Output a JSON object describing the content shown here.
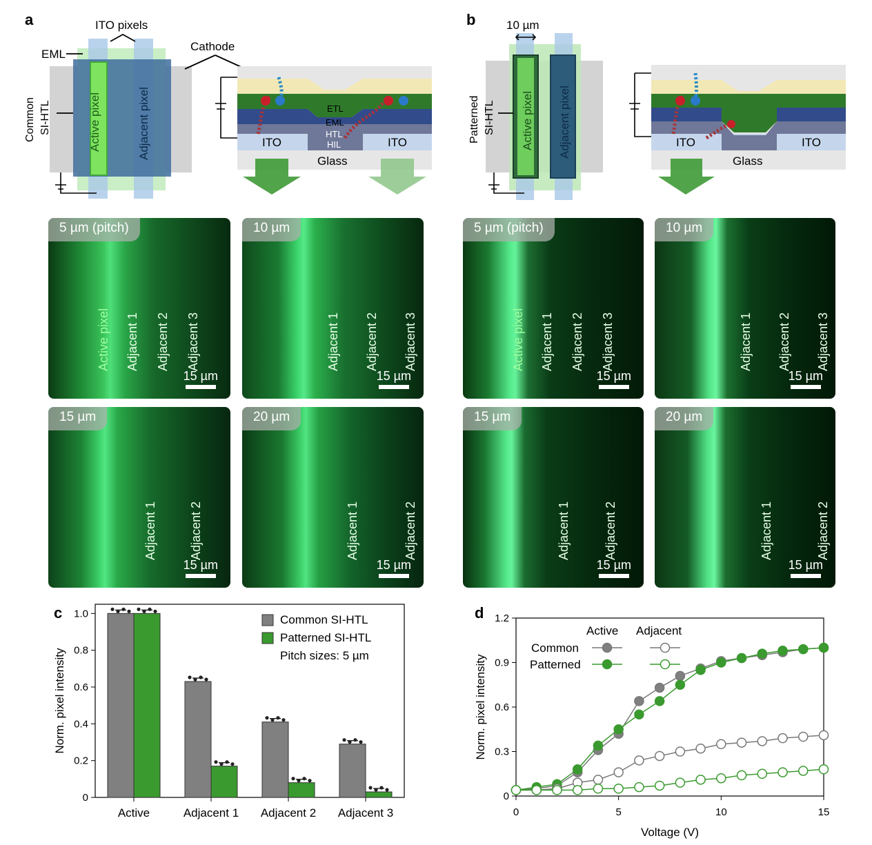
{
  "panel_a": {
    "letter": "a",
    "labels": {
      "ito_pixels": "ITO pixels",
      "eml": "EML",
      "cathode": "Cathode",
      "side": "Common\nSI-HTL",
      "active": "Active pixel",
      "adjacent": "Adjacent pixel",
      "etl": "ETL",
      "eml2": "EML",
      "htl": "HTL",
      "hil": "HIL",
      "ito_left": "ITO",
      "ito_right": "ITO",
      "glass": "Glass"
    },
    "micrographs": [
      {
        "tag": "5 µm (pitch)",
        "labels": [
          "Active pixel",
          "Adjacent 1",
          "Adjacent 2",
          "Adjacent 3"
        ],
        "scalebar": "15 µm"
      },
      {
        "tag": "10 µm",
        "labels": [
          "Adjacent 1",
          "Adjacent 2",
          "Adjacent 3"
        ],
        "scalebar": "15 µm"
      },
      {
        "tag": "15 µm",
        "labels": [
          "Adjacent 1",
          "Adjacent 2"
        ],
        "scalebar": "15 µm"
      },
      {
        "tag": "20 µm",
        "labels": [
          "Adjacent 1",
          "Adjacent 2"
        ],
        "scalebar": "15 µm"
      }
    ]
  },
  "panel_b": {
    "letter": "b",
    "labels": {
      "width": "10 µm",
      "side": "Patterned\nSI-HTL",
      "active": "Active pixel",
      "adjacent": "Adjacent pixel",
      "ito_left": "ITO",
      "ito_right": "ITO",
      "glass": "Glass"
    },
    "micrographs": [
      {
        "tag": "5 µm (pitch)",
        "labels": [
          "Active pixel",
          "Adjacent 1",
          "Adjacent 2",
          "Adjacent 3"
        ],
        "scalebar": "15 µm"
      },
      {
        "tag": "10 µm",
        "labels": [
          "Adjacent 1",
          "Adjacent 2",
          "Adjacent 3"
        ],
        "scalebar": "15 µm"
      },
      {
        "tag": "15 µm",
        "labels": [
          "Adjacent 1",
          "Adjacent 2"
        ],
        "scalebar": "15 µm"
      },
      {
        "tag": "20 µm",
        "labels": [
          "Adjacent 1",
          "Adjacent 2"
        ],
        "scalebar": "15 µm"
      }
    ]
  },
  "colors": {
    "common": "#808080",
    "patterned": "#3a9a2f",
    "patterned_hollow": "#3a9a2f",
    "common_hollow": "#777777"
  },
  "chart_data": [
    {
      "letter": "c",
      "type": "bar",
      "ylabel": "Norm. pixel intensity",
      "ylim": [
        0,
        1.05
      ],
      "yticks": [
        "0",
        "0.2",
        "0.4",
        "0.6",
        "0.8",
        "1.0"
      ],
      "categories": [
        "Active",
        "Adjacent 1",
        "Adjacent 2",
        "Adjacent 3"
      ],
      "series": [
        {
          "name": "Common SI-HTL",
          "values": [
            1.0,
            0.63,
            0.41,
            0.29
          ]
        },
        {
          "name": "Patterned SI-HTL",
          "values": [
            1.0,
            0.17,
            0.08,
            0.03
          ]
        }
      ],
      "note": "Pitch sizes: 5 µm"
    },
    {
      "letter": "d",
      "type": "line",
      "xlabel": "Voltage (V)",
      "ylabel": "Norm. pixel intensity",
      "xlim": [
        0,
        15
      ],
      "ylim": [
        0,
        1.2
      ],
      "xticks": [
        "0",
        "5",
        "10",
        "15"
      ],
      "yticks": [
        "0",
        "0.3",
        "0.6",
        "0.9",
        "1.2"
      ],
      "legend": {
        "col_active": "Active",
        "col_adjacent": "Adjacent",
        "row_common": "Common",
        "row_patterned": "Patterned"
      },
      "x": [
        0,
        1,
        2,
        3,
        4,
        5,
        6,
        7,
        8,
        9,
        10,
        11,
        12,
        13,
        14,
        15
      ],
      "series": [
        {
          "name": "Common Active",
          "values": [
            0.04,
            0.05,
            0.07,
            0.16,
            0.31,
            0.42,
            0.64,
            0.73,
            0.81,
            0.86,
            0.91,
            0.93,
            0.95,
            0.97,
            0.99,
            1.0
          ]
        },
        {
          "name": "Patterned Active",
          "values": [
            0.04,
            0.06,
            0.08,
            0.18,
            0.34,
            0.45,
            0.55,
            0.64,
            0.75,
            0.85,
            0.9,
            0.93,
            0.96,
            0.98,
            0.99,
            1.0
          ]
        },
        {
          "name": "Common Adjacent",
          "values": [
            0.04,
            0.04,
            0.05,
            0.09,
            0.11,
            0.16,
            0.24,
            0.27,
            0.3,
            0.32,
            0.35,
            0.36,
            0.37,
            0.39,
            0.4,
            0.41
          ]
        },
        {
          "name": "Patterned Adjacent",
          "values": [
            0.04,
            0.04,
            0.04,
            0.04,
            0.05,
            0.05,
            0.06,
            0.07,
            0.09,
            0.11,
            0.12,
            0.14,
            0.15,
            0.16,
            0.17,
            0.18
          ]
        }
      ]
    }
  ]
}
